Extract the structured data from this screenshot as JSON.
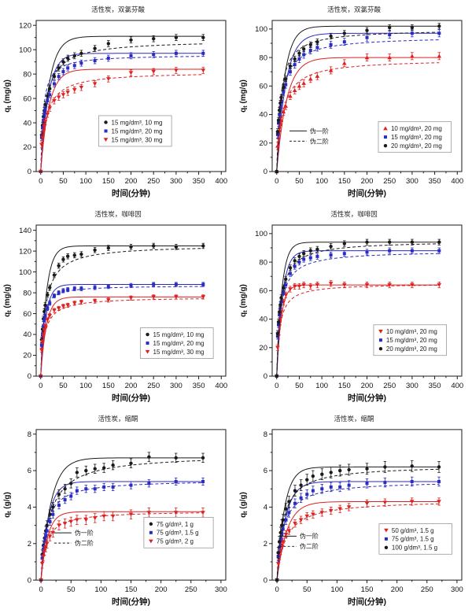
{
  "figure": {
    "background": "#ffffff",
    "frame_color": "#1a1a1a",
    "legend_border_color": "#999999"
  },
  "chart_data": [
    {
      "id": "diclofenac-varying-mass",
      "type": "scatter",
      "title": "活性炭，双氯芬酸",
      "xlabel": "时间(分钟)",
      "ylabel": {
        "base": "q",
        "sub": "t",
        "unit": " (mg/g)"
      },
      "xlim": [
        -10,
        410
      ],
      "xticks": [
        0,
        50,
        100,
        150,
        200,
        250,
        300,
        350,
        400
      ],
      "ylim": [
        0,
        124
      ],
      "yticks": [
        0,
        20,
        40,
        60,
        80,
        100,
        120
      ],
      "grid": false,
      "x": [
        0,
        2,
        4,
        6,
        8,
        10,
        15,
        20,
        30,
        40,
        50,
        60,
        75,
        90,
        120,
        150,
        200,
        250,
        300,
        360
      ],
      "series": [
        {
          "label": "15 mg/dm³, 10 mg",
          "color": "#1a1a1a",
          "marker": "circle",
          "err": 2.5,
          "y": [
            0,
            30,
            38,
            45,
            50,
            55,
            62,
            68,
            78,
            85,
            90,
            93,
            95,
            97,
            101,
            105,
            108,
            109,
            110,
            110
          ],
          "pfo": {
            "qe": 111,
            "k": 0.055
          },
          "pso": {
            "qe": 108,
            "K": 0.09
          }
        },
        {
          "label": "15 mg/dm³, 20 mg",
          "color": "#2a2ac4",
          "marker": "square",
          "err": 2.5,
          "y": [
            0,
            28,
            36,
            42,
            47,
            51,
            58,
            63,
            72,
            78,
            82,
            85,
            87,
            89,
            91,
            93,
            95,
            96,
            97,
            97
          ],
          "pfo": {
            "qe": 97,
            "k": 0.06
          },
          "pso": {
            "qe": 96,
            "K": 0.18
          }
        },
        {
          "label": "15 mg/dm³, 30 mg",
          "color": "#e02020",
          "marker": "tri-down",
          "err": 2.5,
          "y": [
            0,
            22,
            28,
            33,
            37,
            41,
            47,
            52,
            58,
            61,
            63,
            65,
            67,
            69,
            72,
            76,
            81,
            82,
            83,
            83
          ],
          "pfo": {
            "qe": 84,
            "k": 0.055
          },
          "pso": {
            "qe": 82,
            "K": 0.09
          }
        }
      ],
      "marker_legend": {
        "x": 0.33,
        "y": 0.63
      },
      "line_legend": null
    },
    {
      "id": "diclofenac-varying-concentration",
      "type": "scatter",
      "title": "活性炭，双氯芬酸",
      "xlabel": "时间(分钟)",
      "ylabel": {
        "base": "q",
        "sub": "t",
        "unit": " (mg/g)"
      },
      "xlim": [
        -10,
        410
      ],
      "xticks": [
        0,
        50,
        100,
        150,
        200,
        250,
        300,
        350,
        400
      ],
      "ylim": [
        0,
        106
      ],
      "yticks": [
        0,
        20,
        40,
        60,
        80,
        100
      ],
      "grid": false,
      "x": [
        0,
        2,
        4,
        6,
        8,
        10,
        15,
        20,
        30,
        40,
        50,
        60,
        75,
        90,
        120,
        150,
        200,
        250,
        300,
        360
      ],
      "series": [
        {
          "label": "10 mg/dm³, 20 mg",
          "color": "#e02020",
          "marker": "tri-up",
          "err": 2.5,
          "y": [
            0,
            18,
            24,
            29,
            33,
            36,
            42,
            46,
            53,
            57,
            60,
            62,
            65,
            67,
            71,
            76,
            80,
            80,
            81,
            81
          ],
          "pfo": {
            "qe": 80,
            "k": 0.045
          },
          "pso": {
            "qe": 79,
            "K": 0.08
          }
        },
        {
          "label": "15 mg/dm³, 20 mg",
          "color": "#2a2ac4",
          "marker": "square",
          "err": 2.5,
          "y": [
            0,
            26,
            34,
            40,
            45,
            49,
            56,
            61,
            70,
            75,
            79,
            82,
            85,
            87,
            89,
            91,
            94,
            96,
            97,
            97
          ],
          "pfo": {
            "qe": 97,
            "k": 0.05
          },
          "pso": {
            "qe": 95,
            "K": 0.1
          }
        },
        {
          "label": "20 mg/dm³, 20 mg",
          "color": "#1a1a1a",
          "marker": "circle",
          "err": 2.0,
          "y": [
            0,
            28,
            36,
            43,
            48,
            52,
            59,
            65,
            74,
            79,
            83,
            86,
            89,
            91,
            95,
            97,
            99,
            101,
            101,
            102
          ],
          "pfo": {
            "qe": 102,
            "k": 0.06
          },
          "pso": {
            "qe": 100,
            "K": 0.12
          }
        }
      ],
      "marker_legend": {
        "x": 0.56,
        "y": 0.67
      },
      "line_legend": {
        "x": 0.091,
        "y": 0.7,
        "solid": "伪一阶",
        "dashed": "伪二阶"
      }
    },
    {
      "id": "caffeine-varying-mass",
      "type": "scatter",
      "title": "活性炭，咖啡因",
      "xlabel": "时间(分钟)",
      "ylabel": {
        "base": "q",
        "sub": "t",
        "unit": " (mg/g)"
      },
      "xlim": [
        -10,
        410
      ],
      "xticks": [
        0,
        50,
        100,
        150,
        200,
        250,
        300,
        350,
        400
      ],
      "ylim": [
        0,
        145
      ],
      "yticks": [
        0,
        20,
        40,
        60,
        80,
        100,
        120,
        140
      ],
      "grid": false,
      "x": [
        0,
        2,
        4,
        6,
        8,
        10,
        15,
        20,
        30,
        40,
        50,
        60,
        75,
        90,
        120,
        150,
        200,
        250,
        300,
        360
      ],
      "series": [
        {
          "label": "15 mg/dm³, 10 mg",
          "color": "#1a1a1a",
          "marker": "circle",
          "err": 2.5,
          "y": [
            0,
            35,
            45,
            55,
            62,
            68,
            78,
            85,
            97,
            106,
            112,
            115,
            116,
            117,
            121,
            123,
            124,
            125,
            124,
            125
          ],
          "pfo": {
            "qe": 125,
            "k": 0.08
          },
          "pso": {
            "qe": 126,
            "K": 0.1
          }
        },
        {
          "label": "15 mg/dm³, 20 mg",
          "color": "#2a2ac4",
          "marker": "square",
          "err": 2.0,
          "y": [
            0,
            30,
            40,
            48,
            54,
            58,
            65,
            70,
            77,
            80,
            82,
            83,
            84,
            84,
            85,
            86,
            87,
            88,
            88,
            88
          ],
          "pfo": {
            "qe": 88,
            "k": 0.09
          },
          "pso": {
            "qe": 87,
            "K": 0.25
          }
        },
        {
          "label": "15 mg/dm³, 30 mg",
          "color": "#e02020",
          "marker": "tri-down",
          "err": 2.0,
          "y": [
            0,
            25,
            33,
            39,
            44,
            48,
            54,
            58,
            63,
            65,
            67,
            68,
            70,
            71,
            72,
            73,
            75,
            76,
            76,
            76
          ],
          "pfo": {
            "qe": 76,
            "k": 0.08
          },
          "pso": {
            "qe": 76,
            "K": 0.12
          }
        }
      ],
      "marker_legend": {
        "x": 0.55,
        "y": 0.68
      },
      "line_legend": null
    },
    {
      "id": "caffeine-varying-concentration",
      "type": "scatter",
      "title": "活性炭，咖啡因",
      "xlabel": "时间(分钟)",
      "ylabel": {
        "base": "q",
        "sub": "t",
        "unit": " (mg/g)"
      },
      "xlim": [
        -10,
        410
      ],
      "xticks": [
        0,
        50,
        100,
        150,
        200,
        250,
        300,
        350,
        400
      ],
      "ylim": [
        0,
        106
      ],
      "yticks": [
        0,
        20,
        40,
        60,
        80,
        100
      ],
      "grid": false,
      "x": [
        0,
        2,
        4,
        6,
        8,
        10,
        15,
        20,
        30,
        40,
        50,
        60,
        75,
        90,
        120,
        150,
        200,
        250,
        300,
        360
      ],
      "series": [
        {
          "label": "10 mg/dm³, 20 mg",
          "color": "#e02020",
          "marker": "tri-down",
          "err": 2.0,
          "y": [
            0,
            20,
            28,
            35,
            40,
            45,
            52,
            57,
            61,
            63,
            63,
            64,
            63,
            64,
            65,
            64,
            64,
            64,
            64,
            64
          ],
          "pfo": {
            "qe": 64,
            "k": 0.1
          },
          "pso": {
            "qe": 65,
            "K": 0.15
          }
        },
        {
          "label": "15 mg/dm³, 20 mg",
          "color": "#2a2ac4",
          "marker": "square",
          "err": 2.0,
          "y": [
            0,
            28,
            36,
            43,
            48,
            52,
            59,
            64,
            72,
            77,
            80,
            82,
            83,
            84,
            85,
            86,
            87,
            88,
            88,
            88
          ],
          "pfo": {
            "qe": 88,
            "k": 0.08
          },
          "pso": {
            "qe": 88,
            "K": 0.12
          }
        },
        {
          "label": "20 mg/dm³, 20 mg",
          "color": "#1a1a1a",
          "marker": "circle",
          "err": 2.0,
          "y": [
            0,
            30,
            38,
            45,
            50,
            55,
            62,
            68,
            76,
            81,
            84,
            86,
            88,
            89,
            91,
            93,
            94,
            94,
            94,
            94
          ],
          "pfo": {
            "qe": 94,
            "k": 0.09
          },
          "pso": {
            "qe": 95,
            "K": 0.12
          }
        }
      ],
      "marker_legend": {
        "x": 0.535,
        "y": 0.66
      },
      "line_legend": null
    },
    {
      "id": "ketal-varying-mass",
      "type": "scatter",
      "title": "活性炭，缩酮",
      "xlabel": "时间(分钟)",
      "ylabel": {
        "base": "q",
        "sub": "t",
        "unit": " (g/g)"
      },
      "xlim": [
        -8,
        308
      ],
      "xticks": [
        0,
        50,
        100,
        150,
        200,
        250,
        300
      ],
      "ylim": [
        0,
        8.25
      ],
      "yticks": [
        0,
        2,
        4,
        6,
        8
      ],
      "grid": false,
      "x": [
        0,
        2,
        4,
        6,
        8,
        10,
        15,
        20,
        30,
        40,
        50,
        60,
        75,
        90,
        105,
        120,
        150,
        180,
        225,
        270
      ],
      "series": [
        {
          "label": "75 g/dm³, 1 g",
          "color": "#1a1a1a",
          "marker": "circle",
          "err": 0.25,
          "y": [
            0,
            1.4,
            1.9,
            2.3,
            2.7,
            3.0,
            3.6,
            4.0,
            4.7,
            5.0,
            5.3,
            5.9,
            6.0,
            6.1,
            6.15,
            6.3,
            6.4,
            6.75,
            6.7,
            6.7
          ],
          "pfo": {
            "qe": 6.7,
            "k": 0.06
          },
          "pso": {
            "qe": 6.9,
            "K": 0.07
          }
        },
        {
          "label": "75 g/dm³, 1.5 g",
          "color": "#2a2ac4",
          "marker": "square",
          "err": 0.2,
          "y": [
            0,
            1.2,
            1.7,
            2.1,
            2.4,
            2.7,
            3.2,
            3.6,
            4.1,
            4.4,
            4.6,
            4.9,
            5.0,
            5.0,
            5.1,
            5.1,
            5.2,
            5.3,
            5.4,
            5.4
          ],
          "pfo": {
            "qe": 5.4,
            "k": 0.08
          },
          "pso": {
            "qe": 5.5,
            "K": 0.12
          }
        },
        {
          "label": "75 g/dm³, 2 g",
          "color": "#e02020",
          "marker": "tri-down",
          "err": 0.25,
          "y": [
            0,
            0.9,
            1.3,
            1.6,
            1.8,
            2.0,
            2.4,
            2.6,
            3.0,
            3.1,
            3.2,
            3.3,
            3.3,
            3.4,
            3.5,
            3.5,
            3.6,
            3.7,
            3.7,
            3.7
          ],
          "pfo": {
            "qe": 3.75,
            "k": 0.09
          },
          "pso": {
            "qe": 3.8,
            "K": 0.12
          }
        }
      ],
      "marker_legend": {
        "x": 0.568,
        "y": 0.583
      },
      "line_legend": {
        "x": 0.095,
        "y": 0.655,
        "solid": "伪一阶",
        "dashed": "伪二阶"
      }
    },
    {
      "id": "ketal-varying-concentration",
      "type": "scatter",
      "title": "活性炭，缩酮",
      "xlabel": "时间(分钟)",
      "ylabel": {
        "base": "q",
        "sub": "t",
        "unit": " (g/g)"
      },
      "xlim": [
        -8,
        308
      ],
      "xticks": [
        0,
        50,
        100,
        150,
        200,
        250,
        300
      ],
      "ylim": [
        0,
        8.25
      ],
      "yticks": [
        0,
        2,
        4,
        6,
        8
      ],
      "grid": false,
      "x": [
        0,
        2,
        4,
        6,
        8,
        10,
        15,
        20,
        30,
        40,
        50,
        60,
        75,
        90,
        105,
        120,
        150,
        180,
        225,
        270
      ],
      "series": [
        {
          "label": "50 g/dm³, 1.5 g",
          "color": "#e02020",
          "marker": "tri-down",
          "err": 0.2,
          "y": [
            0,
            0.9,
            1.3,
            1.6,
            1.9,
            2.1,
            2.5,
            2.7,
            3.1,
            3.3,
            3.5,
            3.6,
            3.7,
            3.8,
            3.9,
            4.0,
            4.2,
            4.25,
            4.3,
            4.3
          ],
          "pfo": {
            "qe": 4.3,
            "k": 0.06
          },
          "pso": {
            "qe": 4.4,
            "K": 0.07
          }
        },
        {
          "label": "75 g/dm³, 1.5 g",
          "color": "#2a2ac4",
          "marker": "square",
          "err": 0.25,
          "y": [
            0,
            1.3,
            1.8,
            2.2,
            2.5,
            2.8,
            3.3,
            3.7,
            4.2,
            4.5,
            4.7,
            4.9,
            5.0,
            5.1,
            5.1,
            5.2,
            5.3,
            5.35,
            5.4,
            5.4
          ],
          "pfo": {
            "qe": 5.4,
            "k": 0.07
          },
          "pso": {
            "qe": 5.45,
            "K": 0.1
          }
        },
        {
          "label": "100 g/dm³, 1.5 g",
          "color": "#1a1a1a",
          "marker": "circle",
          "err": 0.3,
          "y": [
            0,
            1.5,
            2.1,
            2.6,
            3.0,
            3.3,
            3.9,
            4.3,
            4.9,
            5.2,
            5.5,
            5.7,
            5.8,
            5.9,
            6.0,
            6.05,
            6.1,
            6.2,
            6.25,
            6.2
          ],
          "pfo": {
            "qe": 6.2,
            "k": 0.08
          },
          "pso": {
            "qe": 6.3,
            "K": 0.1
          }
        }
      ],
      "marker_legend": {
        "x": 0.564,
        "y": 0.625
      },
      "line_legend": {
        "x": 0.037,
        "y": 0.677,
        "solid": "伪一阶",
        "dashed": "伪二阶"
      }
    }
  ]
}
